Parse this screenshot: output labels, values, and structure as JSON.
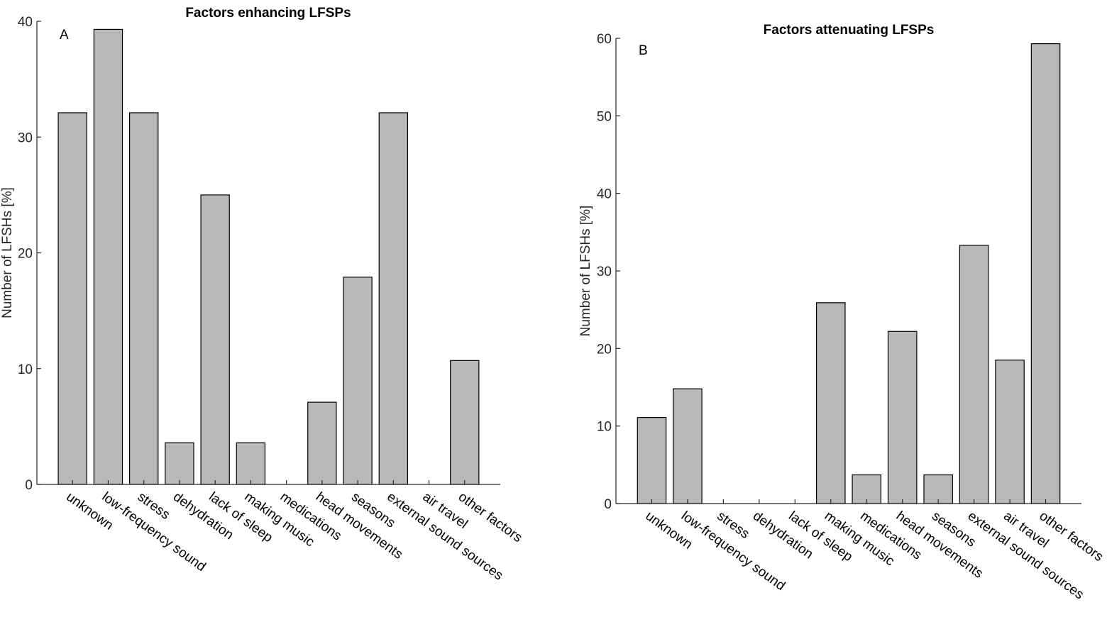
{
  "chart_data": [
    {
      "type": "bar",
      "panel": "A",
      "title": "Factors enhancing LFSPs",
      "ylabel": "Number of LFSHs [%]",
      "xlabel": "",
      "ylim": [
        0,
        40
      ],
      "yticks": [
        0,
        10,
        20,
        30,
        40
      ],
      "bar_color": "#b8b8b8",
      "categories": [
        "unknown",
        "low-frequency sound",
        "stress",
        "dehydration",
        "lack of sleep",
        "making music",
        "medications",
        "head movements",
        "seasons",
        "external sound sources",
        "air travel",
        "other factors"
      ],
      "values": [
        32.1,
        39.3,
        32.1,
        3.6,
        25.0,
        3.6,
        0,
        7.1,
        17.9,
        32.1,
        0,
        10.7
      ]
    },
    {
      "type": "bar",
      "panel": "B",
      "title": "Factors attenuating LFSPs",
      "ylabel": "Number of LFSHs [%]",
      "xlabel": "",
      "ylim": [
        0,
        60
      ],
      "yticks": [
        0,
        10,
        20,
        30,
        40,
        50,
        60
      ],
      "bar_color": "#b8b8b8",
      "categories": [
        "unknown",
        "low-frequency sound",
        "stress",
        "dehydration",
        "lack of sleep",
        "making music",
        "medications",
        "head movements",
        "seasons",
        "external sound sources",
        "air travel",
        "other factors"
      ],
      "values": [
        11.1,
        14.8,
        0,
        0,
        0,
        25.9,
        3.7,
        22.2,
        3.7,
        33.3,
        18.5,
        59.3
      ]
    }
  ]
}
